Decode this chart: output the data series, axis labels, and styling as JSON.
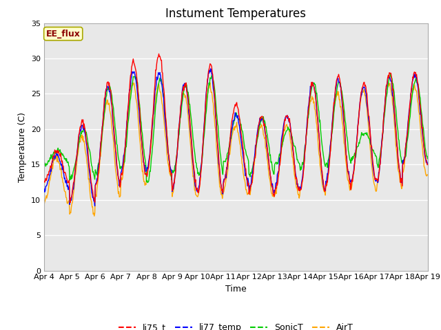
{
  "title": "Instument Temperatures",
  "xlabel": "Time",
  "ylabel": "Temperature (C)",
  "ylim": [
    0,
    35
  ],
  "yticks": [
    0,
    5,
    10,
    15,
    20,
    25,
    30,
    35
  ],
  "line_colors": {
    "li75_t": "#ff0000",
    "li77_temp": "#0000ff",
    "SonicT": "#00cc00",
    "AirT": "#ffa500"
  },
  "legend_labels": [
    "li75_t",
    "li77_temp",
    "SonicT",
    "AirT"
  ],
  "annotation_text": "EE_flux",
  "annotation_color": "#8b0000",
  "annotation_bg": "#ffffcc",
  "background_color": "#e8e8e8",
  "title_fontsize": 12,
  "axis_label_fontsize": 9,
  "tick_fontsize": 8,
  "daily_max_li75": [
    17.0,
    21.0,
    26.5,
    29.5,
    30.5,
    26.5,
    29.0,
    23.5,
    21.8,
    22.0,
    26.5,
    27.5,
    26.5,
    28.0,
    28.0
  ],
  "daily_min_li75": [
    12.5,
    10.0,
    12.0,
    13.5,
    13.5,
    11.5,
    11.0,
    12.5,
    11.0,
    11.0,
    11.5,
    12.0,
    12.5,
    12.5,
    15.0
  ],
  "daily_max_li77": [
    16.5,
    20.5,
    26.0,
    28.0,
    28.0,
    26.5,
    28.5,
    22.0,
    21.5,
    22.0,
    26.5,
    27.0,
    26.0,
    27.5,
    27.5
  ],
  "daily_min_li77": [
    11.5,
    9.5,
    12.0,
    14.0,
    14.0,
    11.0,
    11.0,
    12.5,
    11.5,
    11.5,
    11.5,
    12.5,
    12.5,
    12.5,
    15.0
  ],
  "daily_max_sonic": [
    17.0,
    20.0,
    26.0,
    27.5,
    27.0,
    26.0,
    27.5,
    22.0,
    21.5,
    20.0,
    26.5,
    26.5,
    19.5,
    27.5,
    27.0
  ],
  "daily_min_sonic": [
    15.0,
    13.0,
    14.0,
    14.5,
    12.5,
    14.0,
    13.5,
    15.5,
    13.5,
    15.0,
    14.5,
    15.0,
    16.0,
    15.0,
    15.5
  ],
  "daily_max_air": [
    16.0,
    19.0,
    24.0,
    26.5,
    26.0,
    25.0,
    26.0,
    20.5,
    20.5,
    20.5,
    24.5,
    25.0,
    25.5,
    26.5,
    26.0
  ],
  "daily_min_air": [
    9.5,
    8.0,
    10.5,
    12.0,
    13.5,
    10.5,
    10.5,
    11.0,
    10.5,
    10.5,
    11.0,
    11.5,
    11.5,
    12.0,
    13.5
  ]
}
